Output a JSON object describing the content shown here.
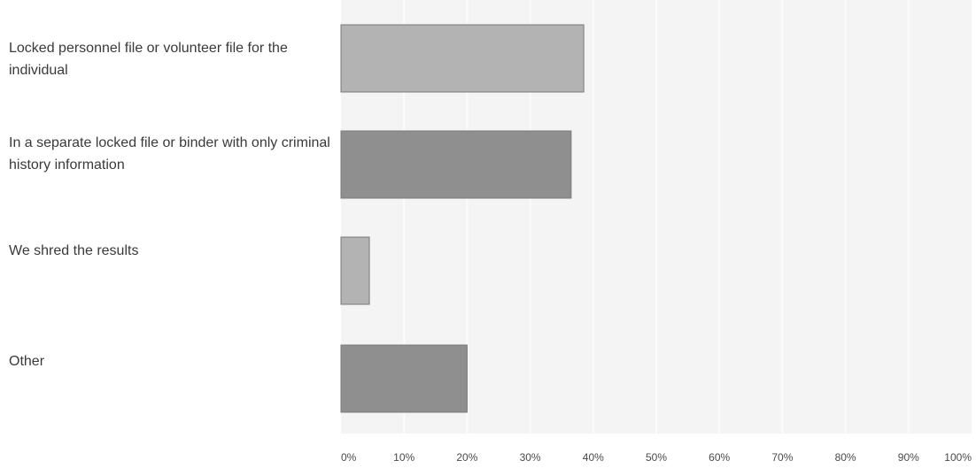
{
  "chart_data": {
    "type": "bar",
    "orientation": "horizontal",
    "categories": [
      "Locked personnel file or volunteer file for the individual",
      "In a separate locked file or binder with only criminal history information",
      "We shred the results",
      "Other"
    ],
    "values": [
      38.5,
      36.5,
      4.5,
      20
    ],
    "xlim": [
      0,
      100
    ],
    "x_tick_labels": [
      "0%",
      "10%",
      "20%",
      "30%",
      "40%",
      "50%",
      "60%",
      "70%",
      "80%",
      "90%",
      "100%"
    ],
    "grid": true,
    "colors": {
      "bar_light": "#b3b3b3",
      "bar_dark": "#8f8f8f",
      "plot_background": "#f4f4f4",
      "gridline": "#fbfbfb",
      "label_text": "#3a3a3a",
      "tick_text": "#4a4a4a"
    }
  }
}
